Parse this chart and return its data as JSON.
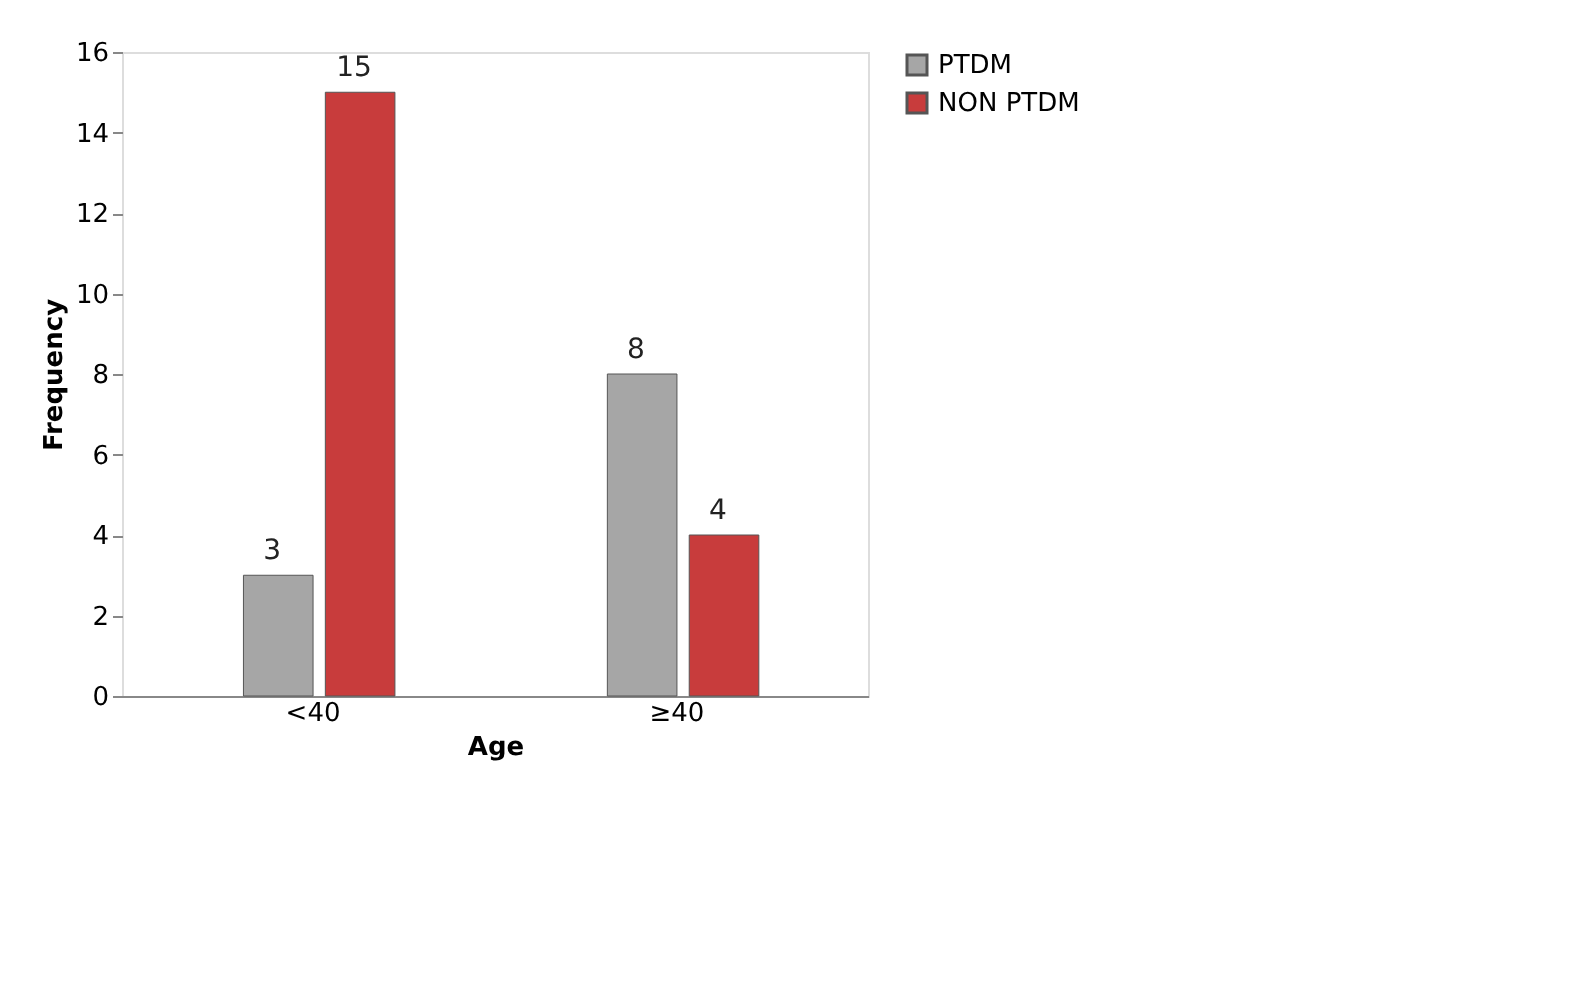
{
  "chart_data": {
    "type": "bar",
    "xlabel": "Age",
    "ylabel": "Frequency",
    "categories": [
      "<40",
      "≥40"
    ],
    "series": [
      {
        "name": "PTDM",
        "color": "#a6a6a6",
        "values": [
          3,
          8
        ]
      },
      {
        "name": "NON PTDM",
        "color": "#c83c3c",
        "values": [
          15,
          4
        ]
      }
    ],
    "ylim": [
      0,
      16
    ],
    "yticks": [
      0,
      2,
      4,
      6,
      8,
      10,
      12,
      14,
      16
    ],
    "grid": false,
    "legend": "right",
    "data_labels": true
  }
}
